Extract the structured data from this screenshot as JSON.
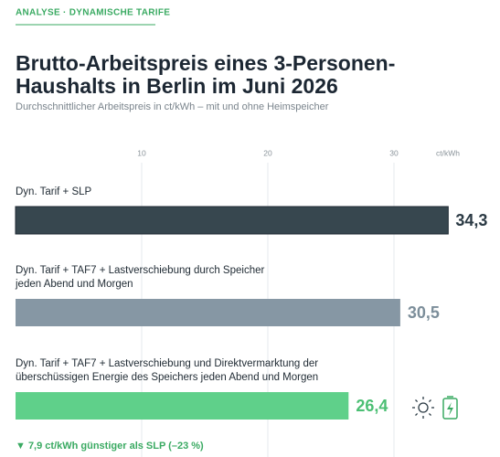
{
  "chart_data": {
    "type": "bar",
    "orientation": "horizontal",
    "kicker": "ANALYSE · DYNAMISCHE TARIFE",
    "title": [
      "Brutto-Arbeitspreis eines 3-Personen-",
      "Haushalts in Berlin im Juni 2026"
    ],
    "subtitle": "Durchschnittlicher Arbeitspreis in ct/kWh – mit und ohne Heimspeicher",
    "x_label": "ct/kWh",
    "categories": [
      "Dyn. Tarif + SLP",
      "Dyn. Tarif + TAF7 + Lastverschiebung durch Speicher\njeden Abend und Morgen",
      "Dyn. Tarif + TAF7 + Lastverschiebung und Direktvermarktung der\nüberschüssigen Energie des Speichers jeden Abend und Morgen"
    ],
    "values": [
      34.3,
      30.5,
      26.4
    ],
    "value_labels": [
      "34,3",
      "30,5",
      "26,4"
    ],
    "colors": [
      "#37474f",
      "#8697a4",
      "#5fd08a"
    ],
    "label_colors": [
      "#2b3a44",
      "#7c8e9a",
      "#4cbf74"
    ],
    "xlim": [
      0,
      38
    ],
    "xticks": [
      10,
      20,
      30
    ],
    "grid": true,
    "annotation": "▼  7,9 ct/kWh günstiger als SLP  (–23 %)"
  }
}
